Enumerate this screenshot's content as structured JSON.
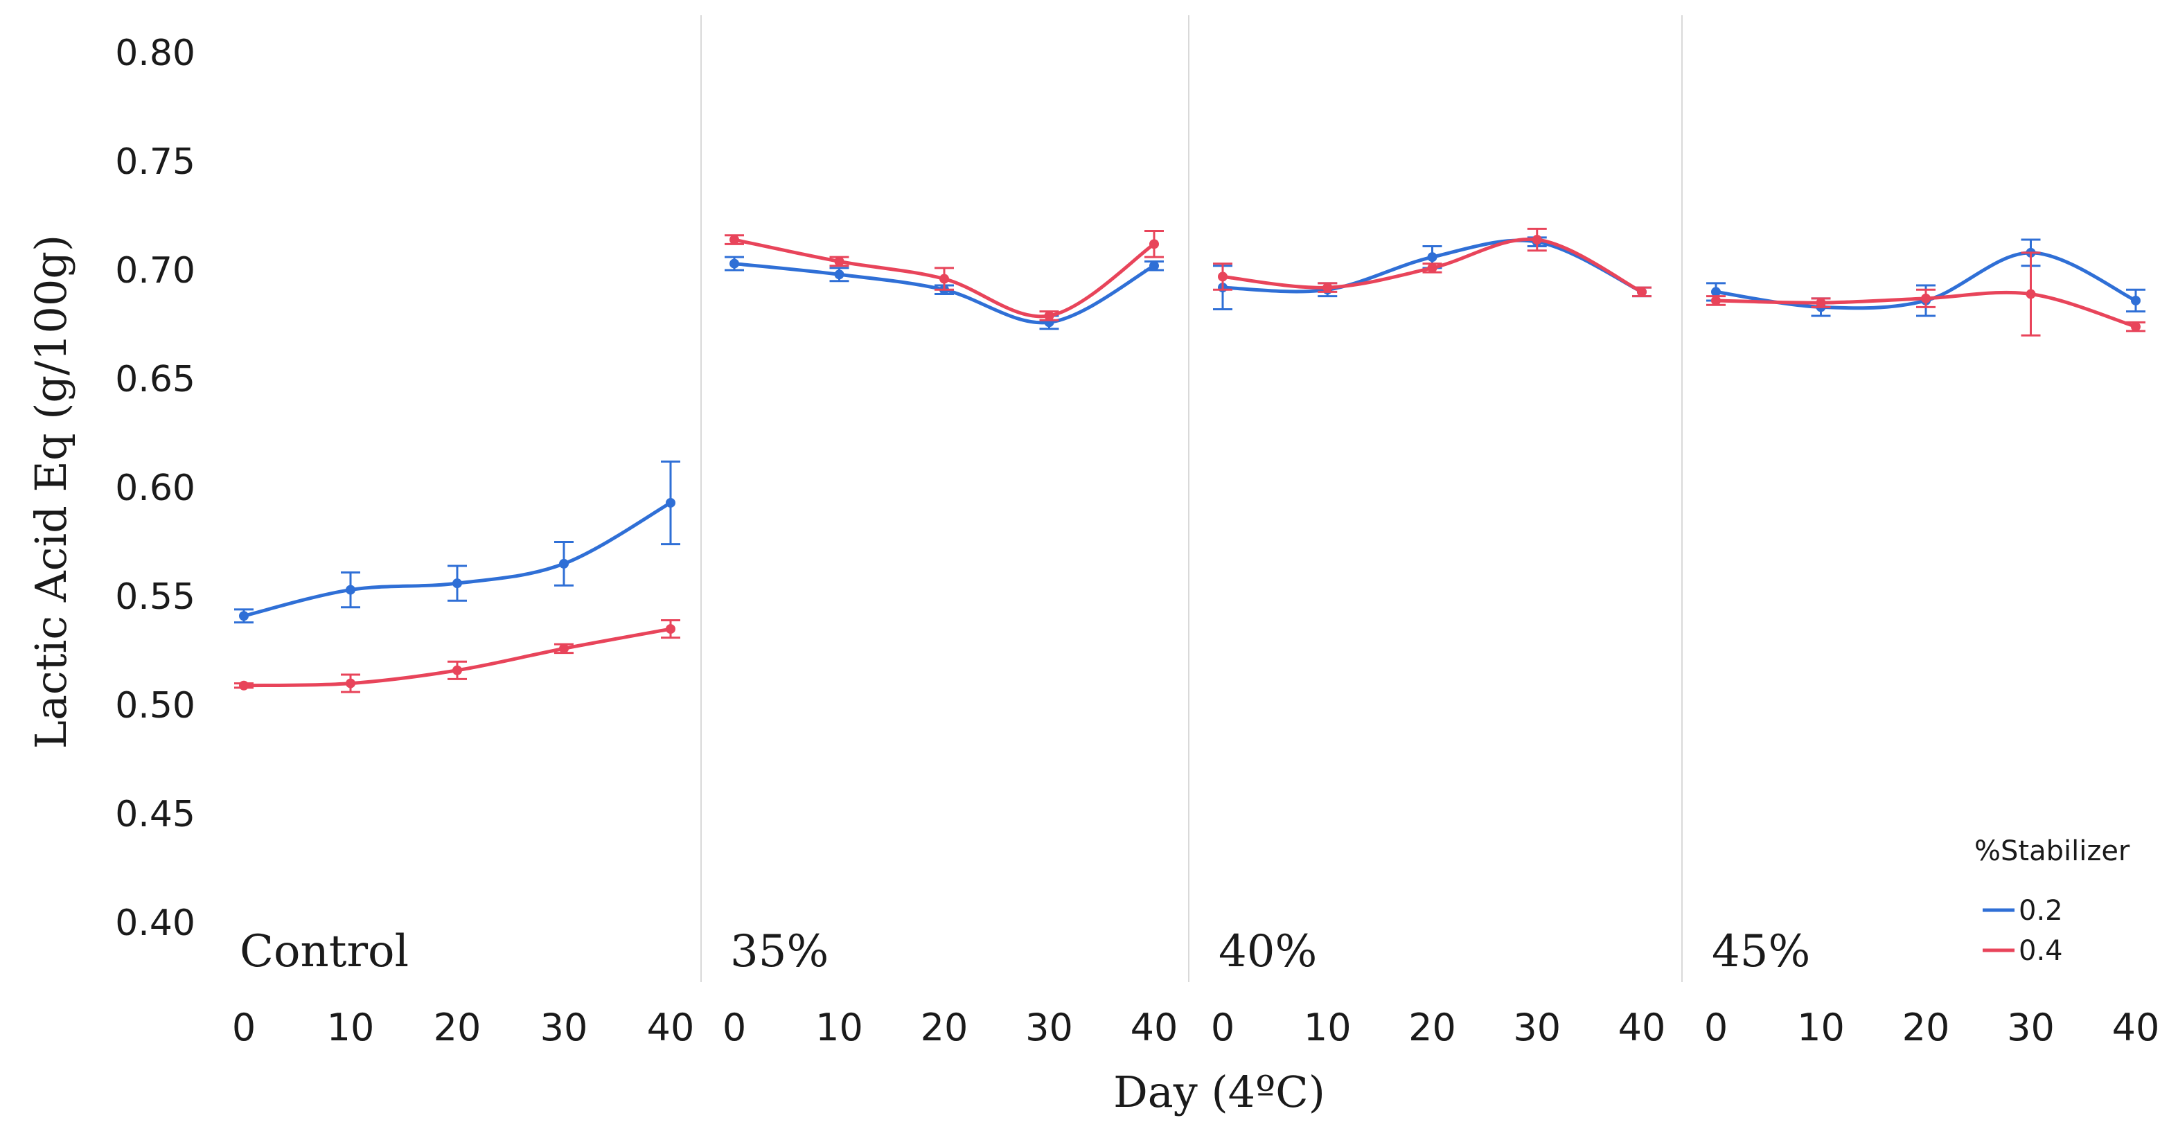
{
  "chart_data": {
    "type": "line",
    "ylabel": "Lactic Acid Eq (g/100g)",
    "xlabel": "Day (4ºC)",
    "ylim": [
      0.4,
      0.8
    ],
    "yticks": [
      "0.80",
      "0.75",
      "0.70",
      "0.65",
      "0.60",
      "0.55",
      "0.50",
      "0.45",
      "0.40"
    ],
    "x": [
      0,
      10,
      20,
      30,
      40
    ],
    "xticks": [
      "0",
      "10",
      "20",
      "30",
      "40"
    ],
    "grid": false,
    "legend": {
      "title": "%Stabilizer",
      "placement": "bottom-right"
    },
    "series_styles": [
      {
        "name": "0.2",
        "color": "#2f6fd6"
      },
      {
        "name": "0.4",
        "color": "#e8445a"
      }
    ],
    "panels": [
      {
        "label": "Control",
        "series": [
          {
            "name": "0.2",
            "values": [
              0.541,
              0.553,
              0.556,
              0.565,
              0.593
            ],
            "errors": [
              0.003,
              0.008,
              0.008,
              0.01,
              0.019
            ]
          },
          {
            "name": "0.4",
            "values": [
              0.509,
              0.51,
              0.516,
              0.526,
              0.535
            ],
            "errors": [
              0.001,
              0.004,
              0.004,
              0.002,
              0.004
            ]
          }
        ]
      },
      {
        "label": "35%",
        "series": [
          {
            "name": "0.2",
            "values": [
              0.703,
              0.698,
              0.691,
              0.676,
              0.702
            ],
            "errors": [
              0.003,
              0.003,
              0.002,
              0.003,
              0.002
            ]
          },
          {
            "name": "0.4",
            "values": [
              0.714,
              0.704,
              0.696,
              0.679,
              0.712
            ],
            "errors": [
              0.002,
              0.002,
              0.005,
              0.002,
              0.006
            ]
          }
        ]
      },
      {
        "label": "40%",
        "series": [
          {
            "name": "0.2",
            "values": [
              0.692,
              0.691,
              0.706,
              0.713,
              0.69
            ],
            "errors": [
              0.01,
              0.003,
              0.005,
              0.002,
              0.002
            ]
          },
          {
            "name": "0.4",
            "values": [
              0.697,
              0.692,
              0.701,
              0.714,
              0.69
            ],
            "errors": [
              0.006,
              0.002,
              0.002,
              0.005,
              0.002
            ]
          }
        ]
      },
      {
        "label": "45%",
        "series": [
          {
            "name": "0.2",
            "values": [
              0.69,
              0.683,
              0.686,
              0.708,
              0.686
            ],
            "errors": [
              0.004,
              0.004,
              0.007,
              0.006,
              0.005
            ]
          },
          {
            "name": "0.4",
            "values": [
              0.686,
              0.685,
              0.687,
              0.689,
              0.674
            ],
            "errors": [
              0.002,
              0.002,
              0.004,
              0.019,
              0.002
            ]
          }
        ]
      }
    ]
  }
}
